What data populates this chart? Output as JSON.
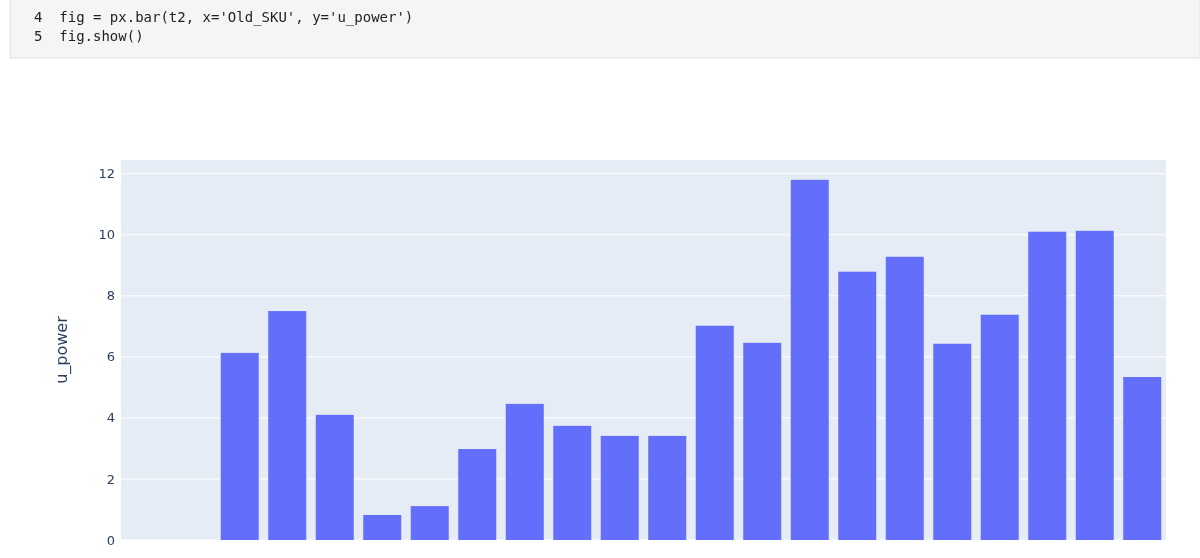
{
  "chart_data": {
    "type": "bar",
    "ylabel": "u_power",
    "annotations": [
      "4  fig = px.bar(t2, x='Old_SKU', y='u_power')",
      "5  fig.show()"
    ],
    "categories": [
      null,
      null,
      null,
      null,
      null,
      null,
      null,
      null,
      null,
      null,
      null,
      null,
      null,
      null,
      null,
      null,
      null,
      null,
      null,
      null,
      null,
      null
    ],
    "values": [
      0,
      0,
      6.13,
      7.5,
      4.1,
      0.82,
      1.11,
      2.98,
      4.46,
      3.74,
      3.41,
      3.41,
      7.02,
      6.46,
      11.8,
      8.79,
      9.28,
      6.43,
      7.38,
      10.1,
      10.13,
      5.34
    ],
    "color": "#636efa",
    "ylim": [
      0,
      12.45
    ],
    "yticks": [
      0,
      2,
      4,
      6,
      8,
      10,
      12
    ],
    "grid": "y"
  }
}
